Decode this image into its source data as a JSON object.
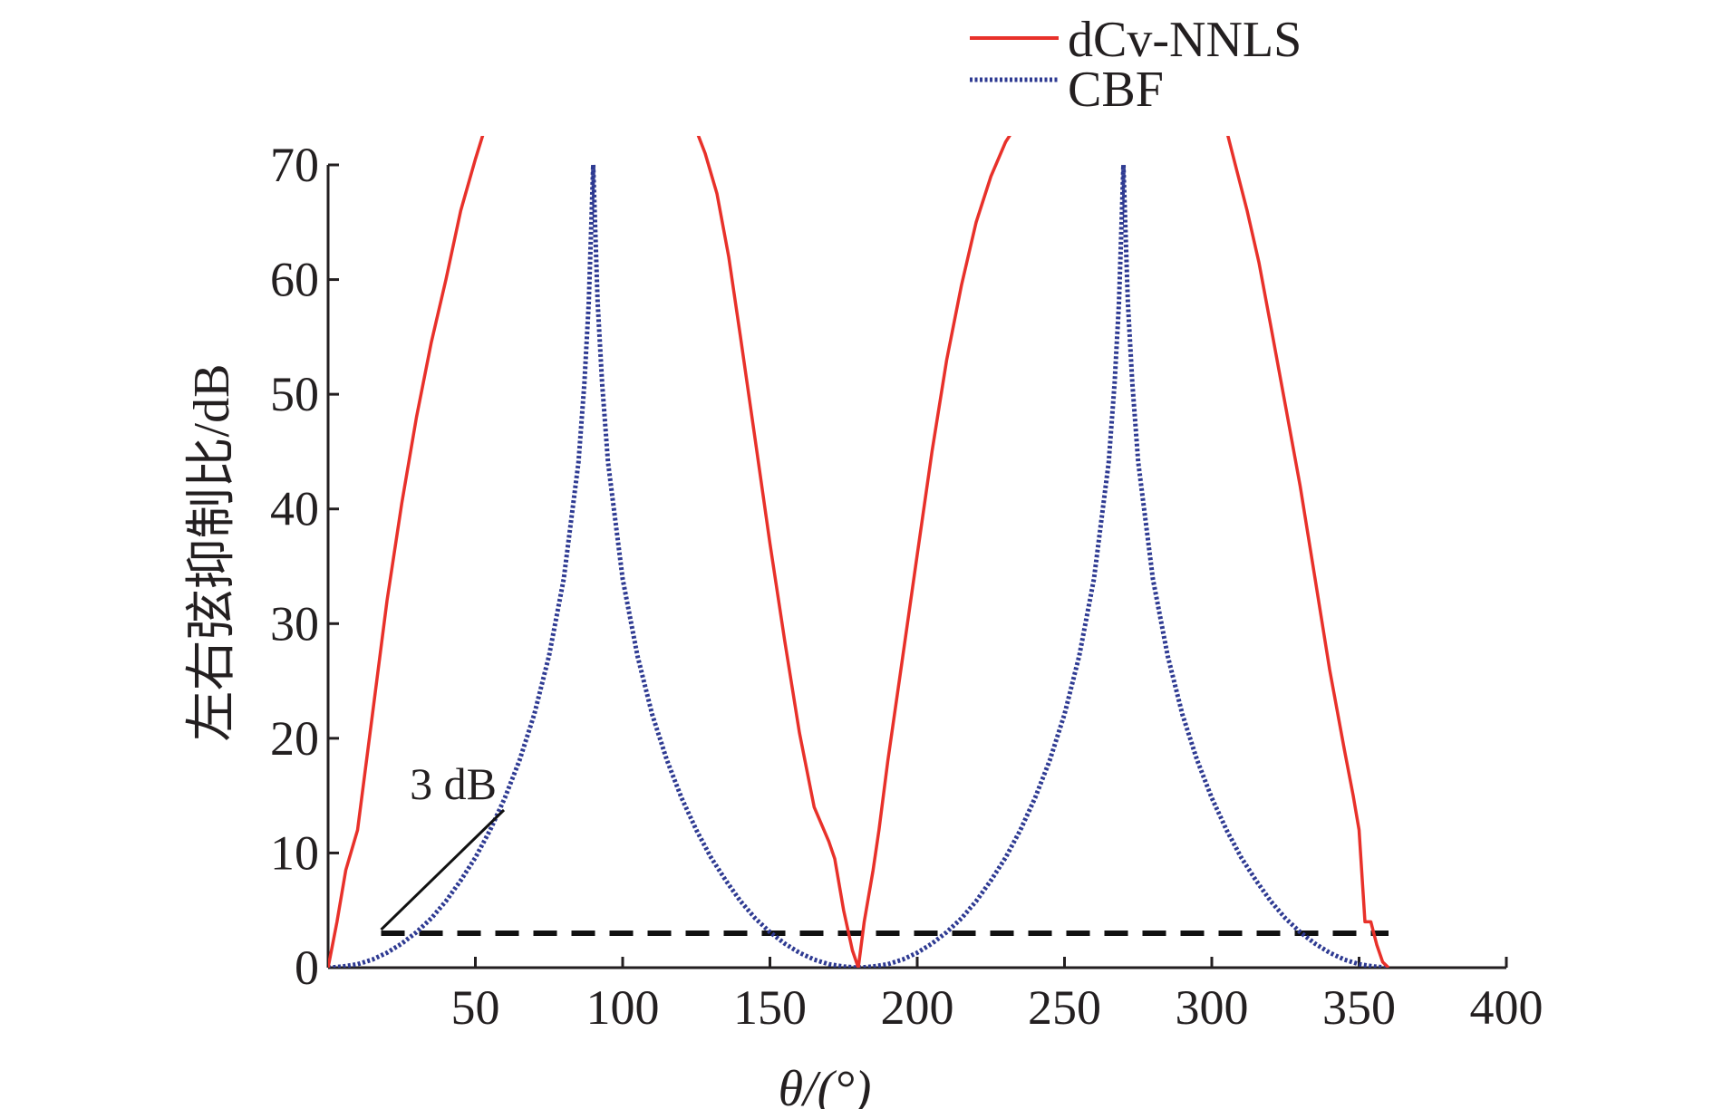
{
  "chart_data": {
    "type": "line",
    "title": "",
    "xlabel": "θ/(°)",
    "ylabel": "左右弦抑制比/dB",
    "xlim": [
      0,
      400
    ],
    "ylim": [
      0,
      70
    ],
    "xticks": [
      50,
      100,
      150,
      200,
      250,
      300,
      350,
      400
    ],
    "yticks": [
      0,
      10,
      20,
      30,
      40,
      50,
      60,
      70
    ],
    "legend_position": "top-right",
    "colors": {
      "dcv": "#e8312a",
      "cbf": "#2e3a92",
      "threshold": "#111111",
      "axis": "#231f20"
    },
    "series": [
      {
        "name": "dCv-NNLS",
        "style": "solid",
        "x": [
          0,
          3,
          6,
          10,
          15,
          20,
          25,
          30,
          35,
          40,
          45,
          50,
          53,
          125,
          128,
          132,
          136,
          140,
          145,
          150,
          155,
          160,
          165,
          170,
          172,
          175,
          178,
          180,
          182,
          185,
          187,
          190,
          195,
          200,
          205,
          210,
          215,
          220,
          225,
          230,
          235,
          238,
          305,
          308,
          312,
          316,
          320,
          325,
          330,
          335,
          340,
          345,
          348,
          350,
          352,
          354,
          356,
          358,
          360
        ],
        "y": [
          0,
          4,
          8.5,
          12,
          22,
          32,
          40.5,
          48,
          54.5,
          60,
          66,
          70.5,
          73,
          73,
          71,
          67.5,
          62,
          55,
          46,
          37,
          28.5,
          20.5,
          14,
          11,
          9.5,
          5,
          1.5,
          0,
          4,
          8.5,
          12,
          18,
          27,
          36,
          45,
          53,
          59.5,
          65,
          69,
          72,
          74,
          75,
          73,
          70,
          66,
          61.5,
          56,
          49,
          42,
          34,
          26,
          19,
          15,
          12,
          4,
          4,
          2,
          0.5,
          0
        ]
      },
      {
        "name": "CBF",
        "style": "dotted",
        "x": [
          0,
          5,
          10,
          15,
          20,
          25,
          30,
          35,
          40,
          45,
          50,
          55,
          60,
          65,
          70,
          75,
          80,
          85,
          87,
          88.5,
          89.5,
          90,
          90.5,
          91.5,
          93,
          95,
          100,
          105,
          110,
          115,
          120,
          125,
          130,
          135,
          140,
          145,
          150,
          155,
          160,
          165,
          170,
          175,
          180,
          185,
          190,
          195,
          200,
          205,
          210,
          215,
          220,
          225,
          230,
          235,
          240,
          245,
          250,
          255,
          260,
          265,
          267,
          268.5,
          269.5,
          270,
          270.5,
          271.5,
          273,
          275,
          280,
          285,
          290,
          295,
          300,
          305,
          310,
          315,
          320,
          325,
          330,
          335,
          340,
          345,
          350,
          355,
          360
        ],
        "y": [
          0,
          0.1,
          0.3,
          0.7,
          1.3,
          2.1,
          3.1,
          4.3,
          5.8,
          7.6,
          9.6,
          12,
          14.8,
          18.1,
          22.1,
          27.2,
          33.9,
          44.1,
          51,
          58,
          66,
          70,
          66,
          58,
          51,
          44.1,
          33.9,
          27.2,
          22.1,
          18.1,
          14.8,
          12,
          9.6,
          7.6,
          5.8,
          4.3,
          3.1,
          2.1,
          1.3,
          0.7,
          0.3,
          0.1,
          0,
          0.1,
          0.3,
          0.7,
          1.3,
          2.1,
          3.1,
          4.3,
          5.8,
          7.6,
          9.6,
          12,
          14.8,
          18.1,
          22.1,
          27.2,
          33.9,
          44.1,
          51,
          58,
          66,
          70,
          66,
          58,
          51,
          44.1,
          33.9,
          27.2,
          22.1,
          18.1,
          14.8,
          12,
          9.6,
          7.6,
          5.8,
          4.3,
          3.1,
          2.1,
          1.3,
          0.7,
          0.3,
          0.1,
          0
        ]
      }
    ],
    "threshold": {
      "y": 3,
      "x_start": 18,
      "x_end": 360,
      "style": "dashed"
    },
    "annotation": {
      "text": "3 dB",
      "x": 18,
      "y": 3
    }
  }
}
